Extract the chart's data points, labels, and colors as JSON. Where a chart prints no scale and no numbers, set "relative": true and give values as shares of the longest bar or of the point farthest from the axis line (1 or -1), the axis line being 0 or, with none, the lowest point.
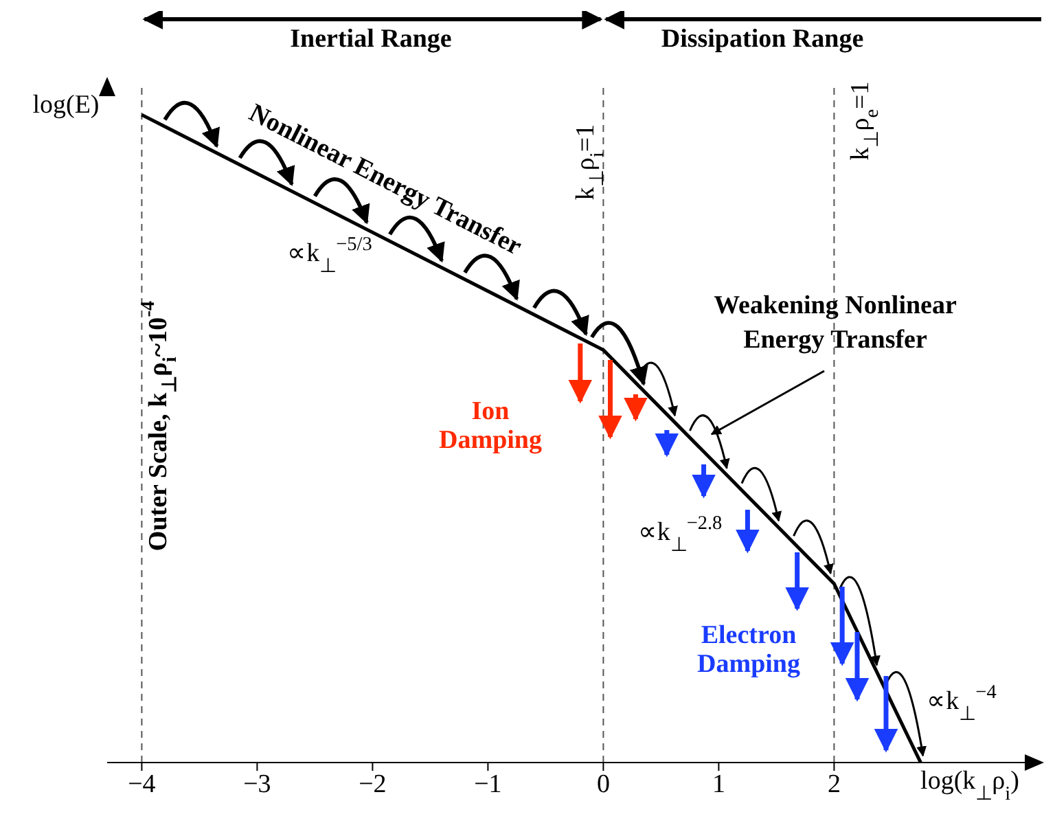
{
  "chart_data": {
    "type": "line",
    "relative": true,
    "xlabel": "log(k$_{⊥}$ρ$_{i}$)",
    "ylabel": "log(E)",
    "x": [
      -4,
      0,
      2,
      2.75
    ],
    "series": [
      {
        "color": "#000000",
        "values": [
          1,
          0.637,
          0.276,
          0
        ]
      }
    ],
    "xlim": [
      -4.3,
      3.7
    ],
    "xticks": [
      {
        "value": -4,
        "label": "−4"
      },
      {
        "value": -3,
        "label": "−3"
      },
      {
        "value": -2,
        "label": "−2"
      },
      {
        "value": -1,
        "label": "−1"
      },
      0,
      1,
      2
    ],
    "ref_lines": [
      {
        "axis": "x",
        "value": -4,
        "label": "Outer Scale, k$_{⊥}$ρ$_{i}$~10$^{-4}$",
        "line_style": "dashed",
        "color": "#555555"
      },
      {
        "axis": "x",
        "value": 0,
        "line_style": "dashed",
        "color": "#555555"
      },
      {
        "axis": "x",
        "value": 2,
        "line_style": "dashed",
        "color": "#555555"
      }
    ],
    "annotations": [
      "Inertial Range",
      "Dissipation Range",
      "Nonlinear Energy Transfer",
      "Weakening Nonlinear Energy Transfer",
      "Ion Damping",
      "Electron Damping",
      "∝k$_{⊥}$$^{−5/3}$",
      "∝k$_{⊥}$$^{−2.8}$",
      "∝k$_{⊥}$$^{−4}$",
      "k$_{⊥}$ρ$_{i}$=1",
      "k$_{⊥}$ρ$_{e}$=1"
    ],
    "grid": false,
    "legend": false
  }
}
